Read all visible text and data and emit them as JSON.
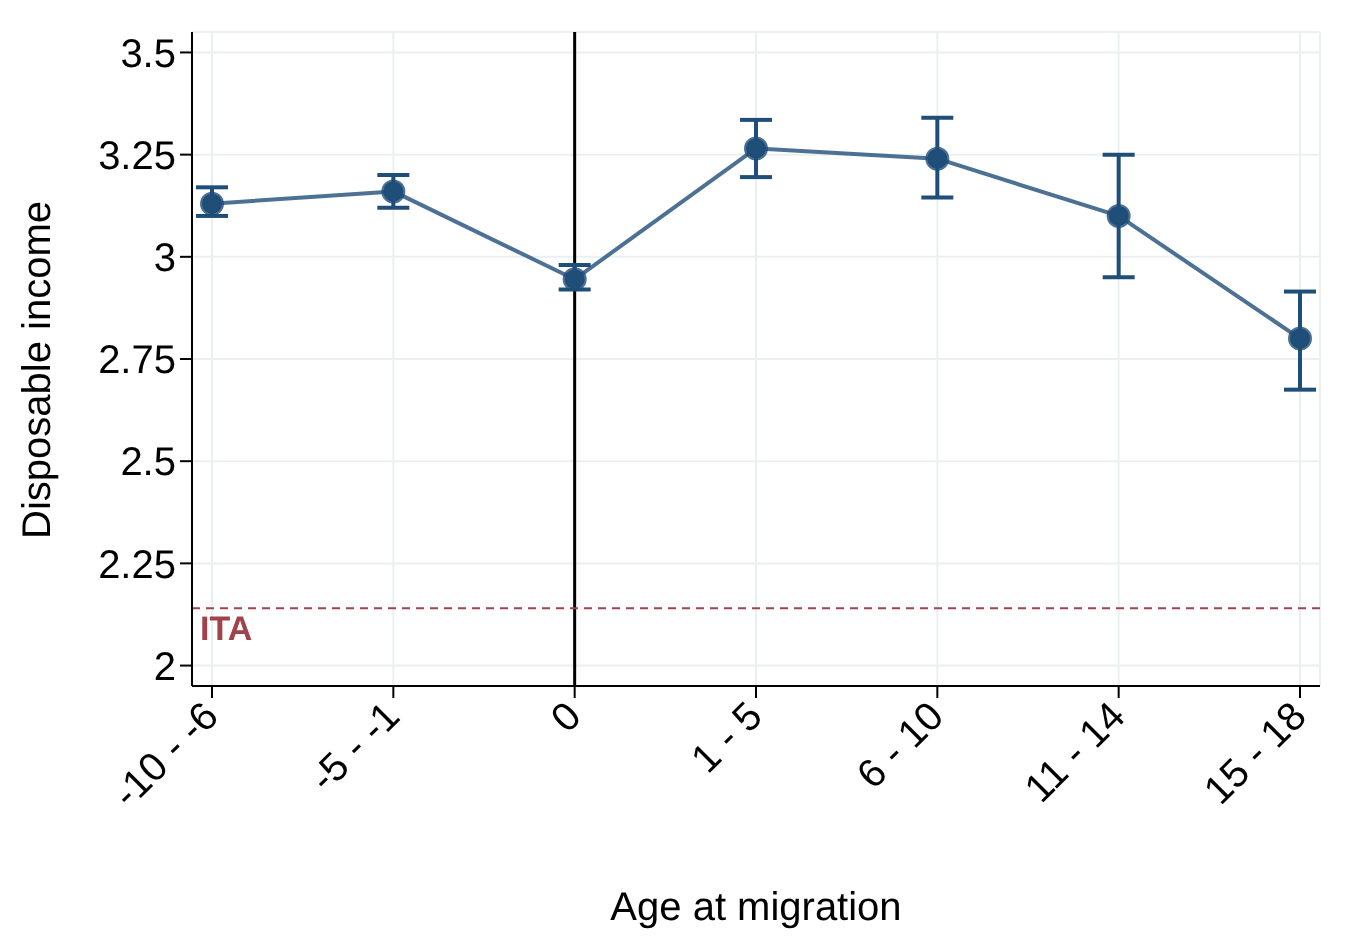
{
  "chart_data": {
    "type": "line",
    "xlabel": "Age at migration",
    "ylabel": "Disposable income",
    "categories": [
      "-10 - -6",
      "-5 - -1",
      "0",
      "1 - 5",
      "6 - 10",
      "11 - 14",
      "15 - 18"
    ],
    "series": [
      {
        "color": "#1f4e79",
        "values": [
          3.13,
          3.16,
          2.945,
          3.265,
          3.24,
          3.1,
          2.8
        ],
        "errors": [
          [
            3.1,
            3.17
          ],
          [
            3.12,
            3.2
          ],
          [
            2.92,
            2.98
          ],
          [
            3.195,
            3.335
          ],
          [
            3.145,
            3.34
          ],
          [
            2.95,
            3.25
          ],
          [
            2.675,
            2.915
          ]
        ]
      }
    ],
    "ylim": [
      1.95,
      3.55
    ],
    "yticks": [
      2,
      2.25,
      2.5,
      2.75,
      3,
      3.25,
      3.5
    ],
    "grid": true,
    "legend": false,
    "marker": "circle",
    "line_style": "solid",
    "ref_lines": [
      {
        "axis": "x",
        "value": "0",
        "color": "#000000",
        "line_style": "solid"
      },
      {
        "axis": "y",
        "value": 2.14,
        "label": "ITA",
        "color": "#a0444c",
        "line_style": "dashed"
      }
    ]
  }
}
